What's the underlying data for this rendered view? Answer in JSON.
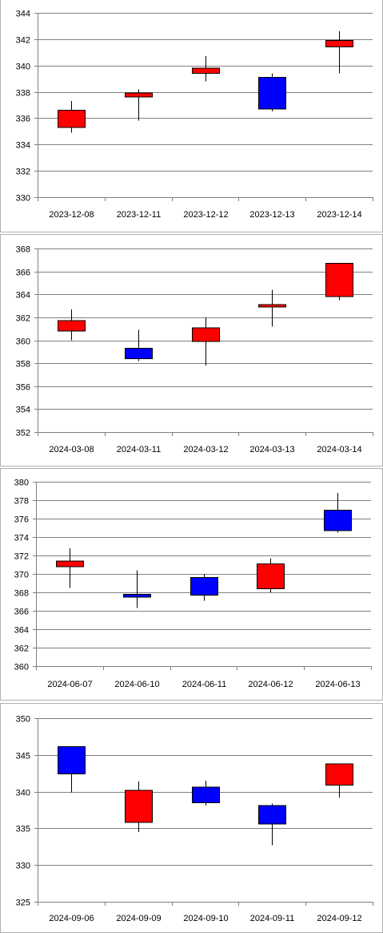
{
  "colors": {
    "up": "#ff0000",
    "down": "#0000ff",
    "grid": "#808080"
  },
  "chart_data": [
    {
      "type": "candlestick",
      "ylim": [
        330,
        344
      ],
      "yticks": [
        330,
        332,
        334,
        336,
        338,
        340,
        342,
        344
      ],
      "grid": true,
      "categories": [
        "2023-12-08",
        "2023-12-11",
        "2023-12-12",
        "2023-12-13",
        "2023-12-14"
      ],
      "candles": [
        {
          "date": "2023-12-08",
          "open": 335.3,
          "high": 337.3,
          "low": 334.9,
          "close": 336.6
        },
        {
          "date": "2023-12-11",
          "open": 337.6,
          "high": 338.2,
          "low": 335.8,
          "close": 337.9
        },
        {
          "date": "2023-12-12",
          "open": 339.4,
          "high": 340.7,
          "low": 338.8,
          "close": 339.8
        },
        {
          "date": "2023-12-13",
          "open": 339.1,
          "high": 339.4,
          "low": 336.5,
          "close": 336.7
        },
        {
          "date": "2023-12-14",
          "open": 341.4,
          "high": 342.6,
          "low": 339.4,
          "close": 341.9
        }
      ]
    },
    {
      "type": "candlestick",
      "ylim": [
        352,
        368
      ],
      "yticks": [
        352,
        354,
        356,
        358,
        360,
        362,
        364,
        366,
        368
      ],
      "grid": true,
      "categories": [
        "2024-03-08",
        "2024-03-11",
        "2024-03-12",
        "2024-03-13",
        "2024-03-14"
      ],
      "candles": [
        {
          "date": "2024-03-08",
          "open": 360.8,
          "high": 362.7,
          "low": 360.0,
          "close": 361.7
        },
        {
          "date": "2024-03-11",
          "open": 359.3,
          "high": 360.9,
          "low": 358.2,
          "close": 358.4
        },
        {
          "date": "2024-03-12",
          "open": 359.9,
          "high": 362.0,
          "low": 357.8,
          "close": 361.1
        },
        {
          "date": "2024-03-13",
          "open": 362.9,
          "high": 364.4,
          "low": 361.2,
          "close": 363.1
        },
        {
          "date": "2024-03-14",
          "open": 363.8,
          "high": 366.7,
          "low": 363.5,
          "close": 366.7
        }
      ]
    },
    {
      "type": "candlestick",
      "ylim": [
        360,
        380
      ],
      "yticks": [
        360,
        362,
        364,
        366,
        368,
        370,
        372,
        374,
        376,
        378,
        380
      ],
      "grid": true,
      "categories": [
        "2024-06-07",
        "2024-06-10",
        "2024-06-11",
        "2024-06-12",
        "2024-06-13"
      ],
      "candles": [
        {
          "date": "2024-06-07",
          "open": 370.8,
          "high": 372.8,
          "low": 368.5,
          "close": 371.4
        },
        {
          "date": "2024-06-10",
          "open": 367.8,
          "high": 370.4,
          "low": 366.3,
          "close": 367.5
        },
        {
          "date": "2024-06-11",
          "open": 369.6,
          "high": 370.0,
          "low": 367.1,
          "close": 367.7
        },
        {
          "date": "2024-06-12",
          "open": 368.4,
          "high": 371.7,
          "low": 368.0,
          "close": 371.1
        },
        {
          "date": "2024-06-13",
          "open": 376.9,
          "high": 378.8,
          "low": 374.5,
          "close": 374.7
        }
      ]
    },
    {
      "type": "candlestick",
      "ylim": [
        325,
        350
      ],
      "yticks": [
        325,
        330,
        335,
        340,
        345,
        350
      ],
      "grid": true,
      "categories": [
        "2024-09-06",
        "2024-09-09",
        "2024-09-10",
        "2024-09-11",
        "2024-09-12"
      ],
      "candles": [
        {
          "date": "2024-09-06",
          "open": 346.1,
          "high": 346.1,
          "low": 339.9,
          "close": 342.4
        },
        {
          "date": "2024-09-09",
          "open": 335.8,
          "high": 341.4,
          "low": 334.5,
          "close": 340.2
        },
        {
          "date": "2024-09-10",
          "open": 340.6,
          "high": 341.5,
          "low": 338.1,
          "close": 338.5
        },
        {
          "date": "2024-09-11",
          "open": 338.1,
          "high": 338.4,
          "low": 332.7,
          "close": 335.6
        },
        {
          "date": "2024-09-12",
          "open": 340.9,
          "high": 343.8,
          "low": 339.2,
          "close": 343.8
        }
      ]
    }
  ]
}
